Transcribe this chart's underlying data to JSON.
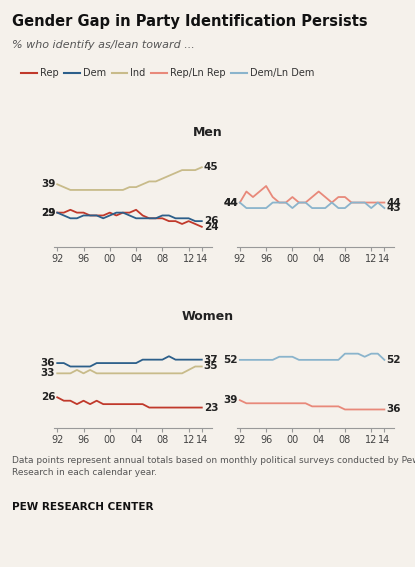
{
  "title": "Gender Gap in Party Identification Persists",
  "subtitle": "% who identify as/lean toward ...",
  "footer": "Data points represent annual totals based on monthly political surveys conducted by Pew\nResearch in each calendar year.",
  "source": "PEW RESEARCH CENTER",
  "years": [
    1992,
    1993,
    1994,
    1995,
    1996,
    1997,
    1998,
    1999,
    2000,
    2001,
    2002,
    2003,
    2004,
    2005,
    2006,
    2007,
    2008,
    2009,
    2010,
    2011,
    2012,
    2013,
    2014
  ],
  "men_rep": [
    29,
    29,
    30,
    29,
    29,
    28,
    28,
    28,
    29,
    28,
    29,
    29,
    30,
    28,
    27,
    27,
    27,
    26,
    26,
    25,
    26,
    25,
    24
  ],
  "men_dem": [
    29,
    28,
    27,
    27,
    28,
    28,
    28,
    27,
    28,
    29,
    29,
    28,
    27,
    27,
    27,
    27,
    28,
    28,
    27,
    27,
    27,
    26,
    26
  ],
  "men_ind": [
    39,
    38,
    37,
    37,
    37,
    37,
    37,
    37,
    37,
    37,
    37,
    38,
    38,
    39,
    40,
    40,
    41,
    42,
    43,
    44,
    44,
    44,
    45
  ],
  "men_rep_ln": [
    44,
    46,
    45,
    46,
    47,
    45,
    44,
    44,
    45,
    44,
    44,
    45,
    46,
    45,
    44,
    45,
    45,
    44,
    44,
    44,
    44,
    44,
    44
  ],
  "men_dem_ln": [
    44,
    43,
    43,
    43,
    43,
    44,
    44,
    44,
    43,
    44,
    44,
    43,
    43,
    43,
    44,
    43,
    43,
    44,
    44,
    44,
    43,
    44,
    43
  ],
  "women_rep": [
    26,
    25,
    25,
    24,
    25,
    24,
    25,
    24,
    24,
    24,
    24,
    24,
    24,
    24,
    23,
    23,
    23,
    23,
    23,
    23,
    23,
    23,
    23
  ],
  "women_dem": [
    36,
    36,
    35,
    35,
    35,
    35,
    36,
    36,
    36,
    36,
    36,
    36,
    36,
    37,
    37,
    37,
    37,
    38,
    37,
    37,
    37,
    37,
    37
  ],
  "women_ind": [
    33,
    33,
    33,
    34,
    33,
    34,
    33,
    33,
    33,
    33,
    33,
    33,
    33,
    33,
    33,
    33,
    33,
    33,
    33,
    33,
    34,
    35,
    35
  ],
  "women_rep_ln": [
    39,
    38,
    38,
    38,
    38,
    38,
    38,
    38,
    38,
    38,
    38,
    37,
    37,
    37,
    37,
    37,
    36,
    36,
    36,
    36,
    36,
    36,
    36
  ],
  "women_dem_ln": [
    52,
    52,
    52,
    52,
    52,
    52,
    53,
    53,
    53,
    52,
    52,
    52,
    52,
    52,
    52,
    52,
    54,
    54,
    54,
    53,
    54,
    54,
    52
  ],
  "colors": {
    "rep": "#c0392b",
    "dem": "#2c5f8a",
    "ind": "#c8bb8a",
    "rep_ln": "#e8897a",
    "dem_ln": "#8ab4cc"
  },
  "legend_labels": [
    "Rep",
    "Dem",
    "Ind",
    "Rep/Ln Rep",
    "Dem/Ln Dem"
  ],
  "bg_color": "#f5f1eb"
}
